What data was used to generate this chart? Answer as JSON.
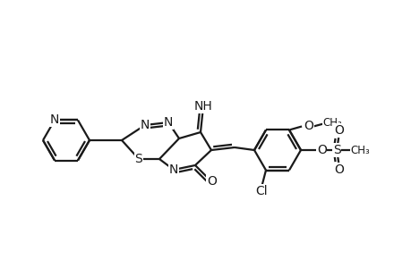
{
  "bg": "#ffffff",
  "lc": "#1a1a1a",
  "lw": 1.6,
  "fs": 9.5,
  "atoms": {
    "note": "all coords in plot space (y upward), image coords flipped: plot_y = 300 - img_y"
  }
}
